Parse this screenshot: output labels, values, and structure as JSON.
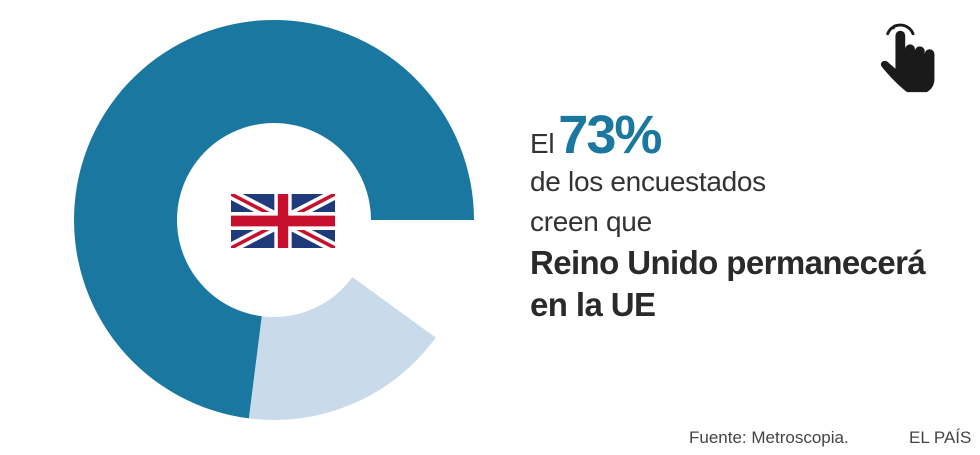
{
  "chart_data": {
    "type": "pie",
    "style": "donut",
    "slices": [
      {
        "name": "",
        "value": 73,
        "color": "#1a78a0"
      },
      {
        "name": "",
        "value": 17,
        "color": "#c9dbea"
      },
      {
        "name": "",
        "value": 10,
        "color": "#ffffff"
      }
    ]
  },
  "headline": {
    "prefix": "El",
    "percent": "73%",
    "line2": "de los encuestados",
    "line3": "creen que",
    "bold1": "Reino Unido permanecerá",
    "bold2": "en la UE"
  },
  "colors": {
    "accent": "#1a78a0",
    "light": "#c9dbea"
  },
  "icons": {
    "flag": "uk-flag-icon",
    "pointer": "hand-pointer-icon"
  },
  "footer": {
    "source": "Fuente: Metroscopia.",
    "brand": "EL PAÍS"
  }
}
